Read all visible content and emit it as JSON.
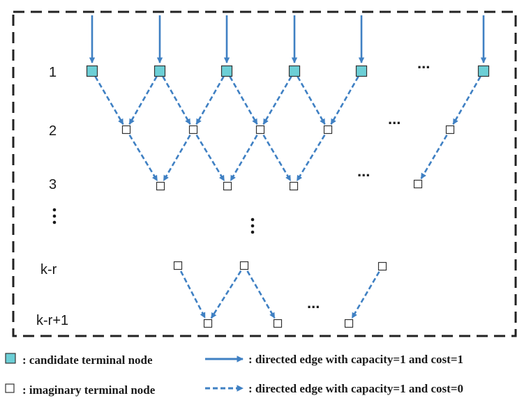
{
  "row_labels": [
    "1",
    "2",
    "3",
    "k-r",
    "k-r+1"
  ],
  "ellipsis": "...",
  "legend": {
    "candidate_node": ": candidate terminal node",
    "imaginary_node": ": imaginary terminal node",
    "solid_edge": ": directed edge with capacity=1 and cost=1",
    "dashed_edge": ": directed edge with capacity=1 and cost=0"
  },
  "colors": {
    "edge_blue": "#3f80c3",
    "candidate_fill": "#6ccfd6",
    "node_stroke": "#333333",
    "frame": "#222222"
  }
}
